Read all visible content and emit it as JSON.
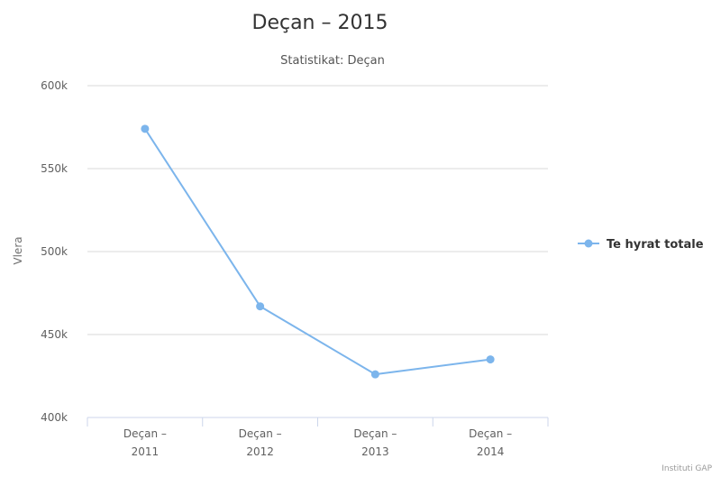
{
  "chart_data": {
    "type": "line",
    "title": "Deçan – 2015",
    "subtitle": "Statistikat: Deçan",
    "ylabel": "Vlera",
    "xlabel": "",
    "ylim": [
      400000,
      600000
    ],
    "yticks": [
      "400k",
      "450k",
      "500k",
      "550k",
      "600k"
    ],
    "ytick_values": [
      400000,
      450000,
      500000,
      550000,
      600000
    ],
    "categories": [
      [
        "Deçan –",
        "2011"
      ],
      [
        "Deçan –",
        "2012"
      ],
      [
        "Deçan –",
        "2013"
      ],
      [
        "Deçan –",
        "2014"
      ]
    ],
    "series": [
      {
        "name": "Te hyrat totale",
        "values": [
          574000,
          467000,
          426000,
          435000
        ],
        "color": "#7cb5ec"
      }
    ],
    "grid": true,
    "legend_position": "right"
  },
  "credits": "Instituti GAP"
}
